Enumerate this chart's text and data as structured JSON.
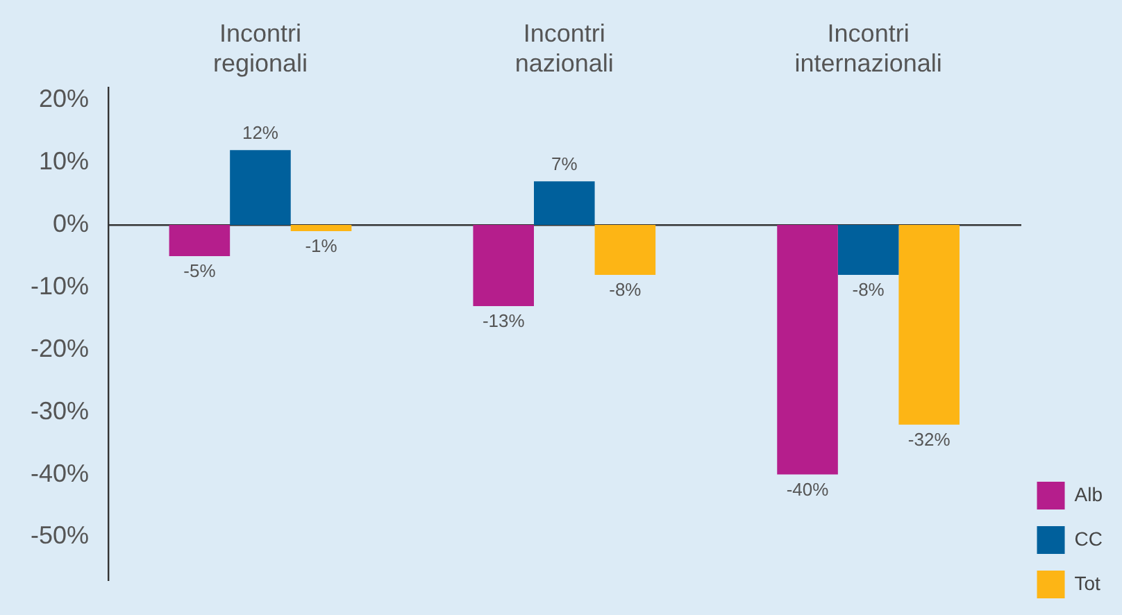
{
  "chart_data": {
    "type": "bar",
    "categories": [
      "Incontri regionali",
      "Incontri nazionali",
      "Incontri internazionali"
    ],
    "series": [
      {
        "name": "Alb",
        "color": "#b51e8c",
        "values": [
          -5,
          -13,
          -40
        ],
        "value_labels": [
          "-5%",
          "-13%",
          "-40%"
        ]
      },
      {
        "name": "CC",
        "color": "#00609c",
        "values": [
          12,
          7,
          -8
        ],
        "value_labels": [
          "12%",
          "7%",
          "-8%"
        ]
      },
      {
        "name": "Tot",
        "color": "#fdb515",
        "values": [
          -1,
          -8,
          -32
        ],
        "value_labels": [
          "-1%",
          "-8%",
          "-32%"
        ]
      }
    ],
    "ylim": [
      -57,
      22
    ],
    "yticks": [
      {
        "value": 20,
        "label": "20%"
      },
      {
        "value": 10,
        "label": "10%"
      },
      {
        "value": 0,
        "label": "0%"
      },
      {
        "value": -10,
        "label": "-10%"
      },
      {
        "value": -20,
        "label": "-20%"
      },
      {
        "value": -30,
        "label": "-30%"
      },
      {
        "value": -40,
        "label": "-40%"
      },
      {
        "value": -50,
        "label": "-50%"
      }
    ],
    "legend": "bottom right"
  }
}
